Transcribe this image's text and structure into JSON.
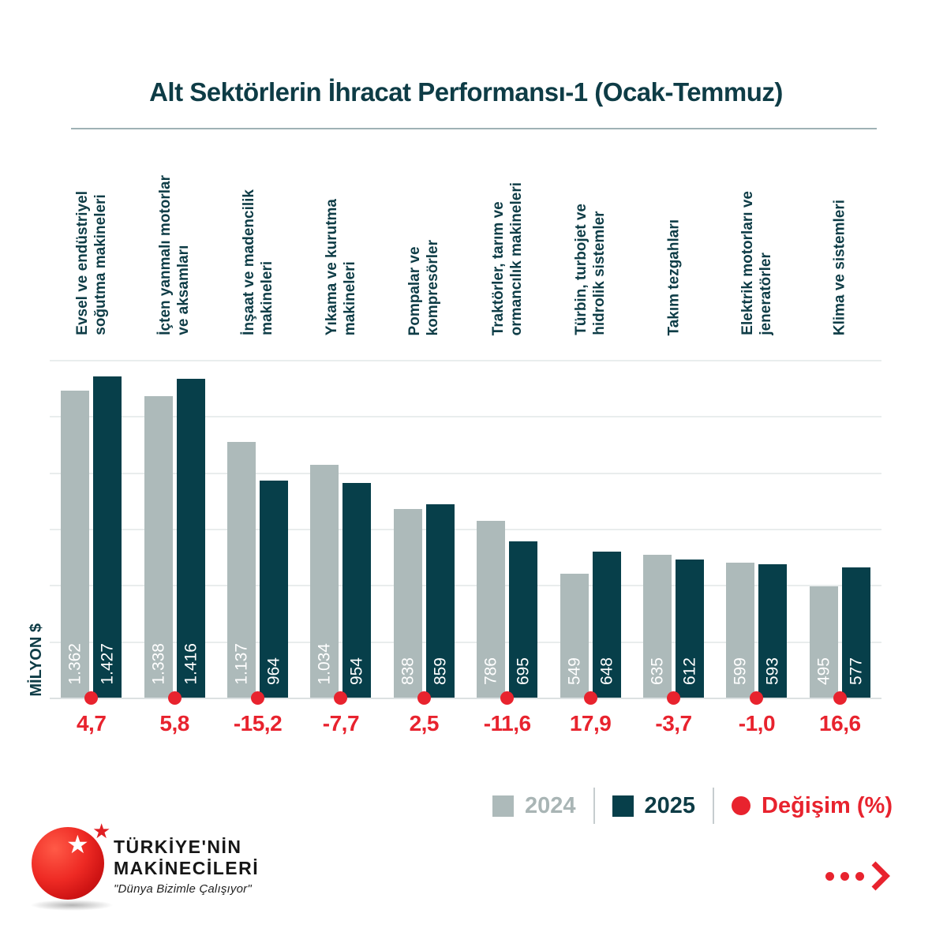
{
  "title": "Alt Sektörlerin İhracat Performansı-1 (Ocak-Temmuz)",
  "y_axis_label": "MİLYON $",
  "legend": {
    "items": [
      {
        "label": "2024",
        "swatch_color": "#adbaba"
      },
      {
        "label": "2025",
        "swatch_color": "#073f4a"
      },
      {
        "label": "Değişim (%)",
        "swatch_color": "#e8232e"
      }
    ]
  },
  "chart_data": {
    "type": "bar",
    "title": "Alt Sektörlerin İhracat Performansı-1 (Ocak-Temmuz)",
    "ylabel": "MİLYON $",
    "ylim": [
      0,
      1500
    ],
    "grid": true,
    "grid_step": 250,
    "legend_position": "bottom-right",
    "categories": [
      "Evsel ve endüstriyel soğutma makineleri",
      "İçten yanmalı motorlar ve aksamları",
      "İnşaat ve madencilik makineleri",
      "Yıkama ve kurutma makineleri",
      "Pompalar ve kompresörler",
      "Traktörler, tarım ve ormancılık makineleri",
      "Türbin, turbojet ve hidrolik sistemler",
      "Takım tezgahları",
      "Elektrik motorları ve jeneratörler",
      "Klima ve sistemleri"
    ],
    "category_lines": [
      [
        "Evsel ve endüstriyel",
        "soğutma makineleri"
      ],
      [
        "İçten yanmalı motorlar",
        "ve aksamları"
      ],
      [
        "İnşaat ve madencilik",
        "makineleri"
      ],
      [
        "Yıkama ve kurutma",
        "makineleri"
      ],
      [
        "Pompalar ve",
        "kompresörler"
      ],
      [
        "Traktörler, tarım ve",
        "ormancılık makineleri"
      ],
      [
        "Türbin, turbojet ve",
        "hidrolik sistemler"
      ],
      [
        "Takım tezgahları"
      ],
      [
        "Elektrik motorları ve",
        "jeneratörler"
      ],
      [
        "Klima ve sistemleri"
      ]
    ],
    "series": [
      {
        "name": "2024",
        "color": "#adbaba",
        "values": [
          1362,
          1338,
          1137,
          1034,
          838,
          786,
          549,
          635,
          599,
          495
        ],
        "value_labels": [
          "1.362",
          "1.338",
          "1.137",
          "1.034",
          "838",
          "786",
          "549",
          "635",
          "599",
          "495"
        ]
      },
      {
        "name": "2025",
        "color": "#073f4a",
        "values": [
          1427,
          1416,
          964,
          954,
          859,
          695,
          648,
          612,
          593,
          577
        ],
        "value_labels": [
          "1.427",
          "1.416",
          "964",
          "954",
          "859",
          "695",
          "648",
          "612",
          "593",
          "577"
        ]
      }
    ],
    "change_series": {
      "name": "Değişim (%)",
      "color": "#e8232e",
      "value_labels": [
        "4,7",
        "5,8",
        "-15,2",
        "-7,7",
        "2,5",
        "-11,6",
        "17,9",
        "-3,7",
        "-1,0",
        "16,6"
      ]
    }
  },
  "brand": {
    "line1": "TÜRKİYE'NİN",
    "line2": "MAKİNECİLERİ",
    "tagline": "\"Dünya Bizimle Çalışıyor\""
  },
  "colors": {
    "teal_dark": "#073f4a",
    "teal_text": "#0e3c46",
    "gray_bar": "#adbaba",
    "accent_red": "#e8232e",
    "gridline": "#e9eded"
  }
}
